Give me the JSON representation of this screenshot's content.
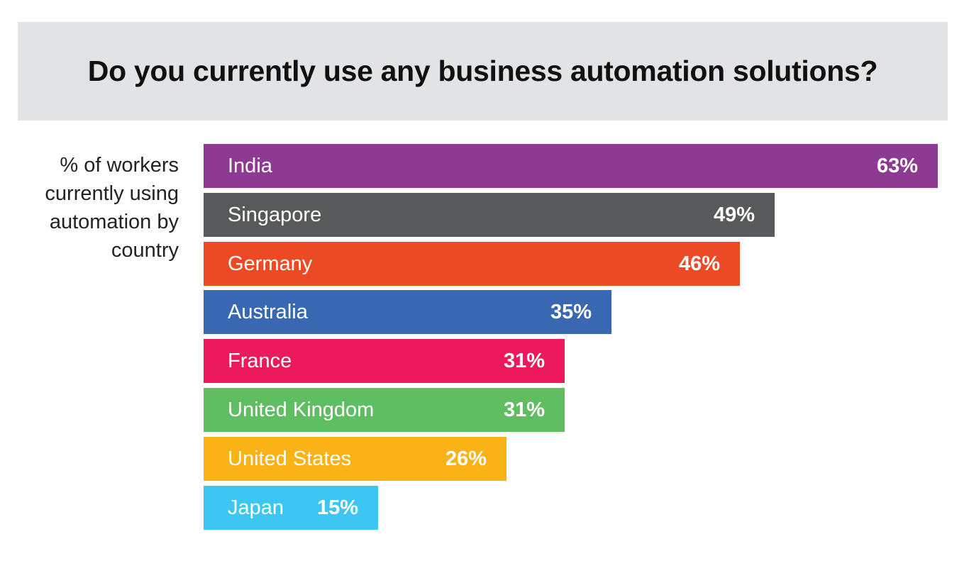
{
  "chart_data": {
    "type": "bar",
    "orientation": "horizontal",
    "title": "Do you currently use any business automation solutions?",
    "ylabel": "% of workers currently using automation by country",
    "categories": [
      "India",
      "Singapore",
      "Germany",
      "Australia",
      "France",
      "United Kingdom",
      "United States",
      "Japan"
    ],
    "values": [
      63,
      49,
      46,
      35,
      31,
      31,
      26,
      15
    ],
    "value_labels": [
      "63%",
      "49%",
      "46%",
      "35%",
      "31%",
      "31%",
      "26%",
      "15%"
    ],
    "colors": [
      "#8e3a92",
      "#58595b",
      "#ec4a24",
      "#3868b1",
      "#ec1a5d",
      "#5fbd62",
      "#fbb217",
      "#3ec6f2"
    ],
    "xlim": [
      0,
      63
    ],
    "grid": false,
    "legend": "none"
  }
}
